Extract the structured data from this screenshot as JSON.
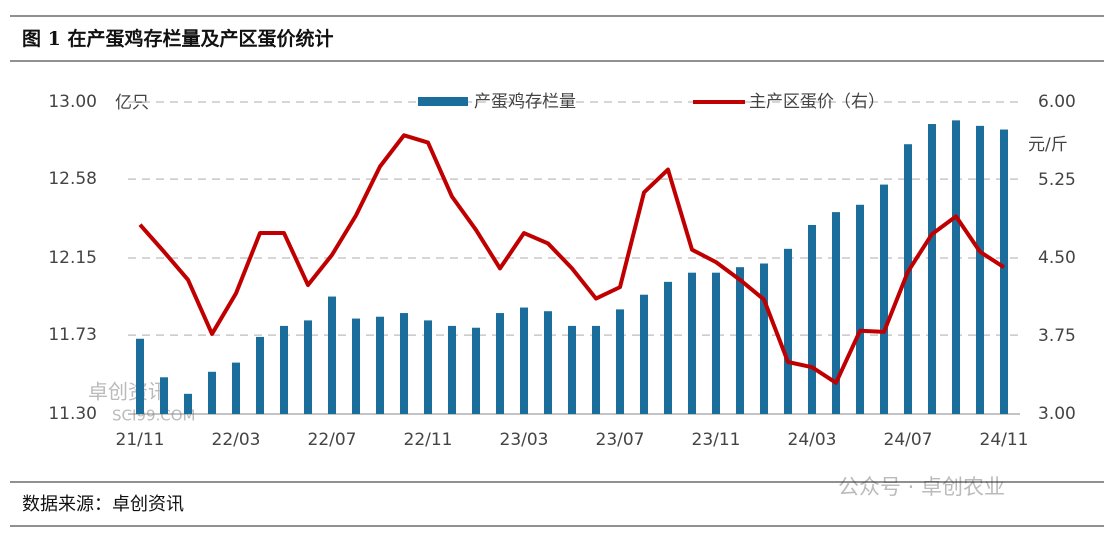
{
  "chart_data": {
    "type": "bar",
    "title": "图 1  在产蛋鸡存栏量及产区蛋价统计",
    "source": "数据来源：卓创资讯",
    "watermarks": [
      "卓创资讯",
      "SCI99.COM",
      "公众号 · 卓创农业"
    ],
    "y_label": "亿只",
    "y2_label": "元/斤",
    "categories": [
      "21/11",
      null,
      null,
      null,
      "22/03",
      null,
      null,
      null,
      "22/07",
      null,
      null,
      null,
      "22/11",
      null,
      null,
      null,
      "23/03",
      null,
      null,
      null,
      "23/07",
      null,
      null,
      null,
      "23/11",
      null,
      null,
      null,
      "24/03",
      null,
      null,
      null,
      "24/07",
      null,
      null,
      null,
      "24/11"
    ],
    "series": [
      {
        "name": "产蛋鸡存栏量",
        "type": "bar",
        "color": "#1b6d9c",
        "values": [
          11.71,
          11.5,
          11.41,
          11.53,
          11.58,
          11.72,
          11.78,
          11.81,
          11.94,
          11.82,
          11.83,
          11.85,
          11.81,
          11.78,
          11.77,
          11.85,
          11.88,
          11.86,
          11.78,
          11.78,
          11.87,
          11.95,
          12.02,
          12.07,
          12.07,
          12.1,
          12.12,
          12.2,
          12.33,
          12.4,
          12.44,
          12.55,
          12.77,
          12.88,
          12.9,
          12.87,
          12.85
        ]
      },
      {
        "name": "主产区蛋价（右）",
        "type": "line",
        "axis": "y2",
        "color": "#c00000",
        "values": [
          4.82,
          4.56,
          4.29,
          3.77,
          4.16,
          4.74,
          4.74,
          4.24,
          4.53,
          4.91,
          5.38,
          5.68,
          5.61,
          5.09,
          4.77,
          4.4,
          4.74,
          4.64,
          4.4,
          4.11,
          4.22,
          5.13,
          5.35,
          4.58,
          4.46,
          4.29,
          4.1,
          3.5,
          3.45,
          3.3,
          3.8,
          3.79,
          4.37,
          4.73,
          4.9,
          4.56,
          4.41
        ]
      }
    ],
    "ylim": [
      11.3,
      13.0
    ],
    "yticks": [
      {
        "value": 11.3,
        "label": "11.30"
      },
      {
        "value": 11.73,
        "label": "11.73"
      },
      {
        "value": 12.15,
        "label": "12.15"
      },
      {
        "value": 12.58,
        "label": "12.58"
      },
      {
        "value": 13.0,
        "label": "13.00"
      }
    ],
    "y2lim": [
      3.0,
      6.0
    ],
    "y2ticks": [
      {
        "value": 3.0,
        "label": "3.00"
      },
      {
        "value": 3.75,
        "label": "3.75"
      },
      {
        "value": 4.5,
        "label": "4.50"
      },
      {
        "value": 5.25,
        "label": "5.25"
      },
      {
        "value": 6.0,
        "label": "6.00"
      }
    ],
    "grid": true
  }
}
